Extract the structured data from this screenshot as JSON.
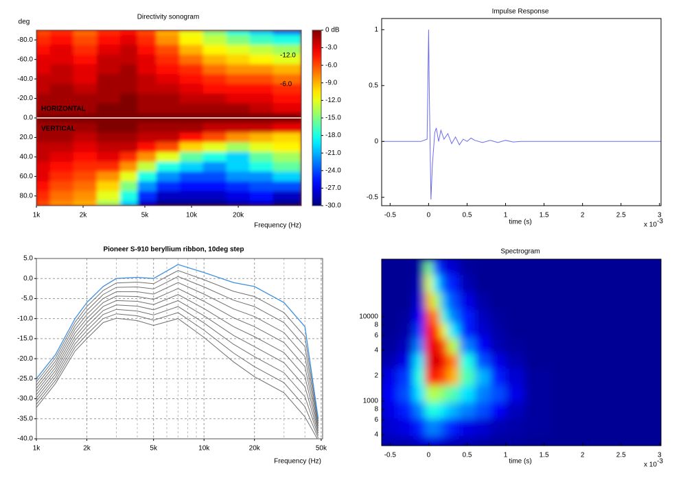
{
  "chart_data": [
    {
      "type": "heatmap",
      "title": "Directivity sonogram",
      "ylabel": "deg",
      "xlabel": "Frequency (Hz)",
      "xlog": true,
      "xlim": [
        1000,
        51000
      ],
      "ylim": [
        -90,
        90
      ],
      "xticks": [
        {
          "value": 1000,
          "label": "1k"
        },
        {
          "value": 2000,
          "label": "2k"
        },
        {
          "value": 5000,
          "label": "5k"
        },
        {
          "value": 10000,
          "label": "10k"
        },
        {
          "value": 20000,
          "label": "20k"
        }
      ],
      "yticks": [
        {
          "value": -80,
          "label": "-80.0"
        },
        {
          "value": -60,
          "label": "-60.0"
        },
        {
          "value": -40,
          "label": "-40.0"
        },
        {
          "value": -20,
          "label": "-20.0"
        },
        {
          "value": 0,
          "label": "0.0"
        },
        {
          "value": 20,
          "label": "20.0"
        },
        {
          "value": 40,
          "label": "40.0"
        },
        {
          "value": 60,
          "label": "60.0"
        },
        {
          "value": 80,
          "label": "80.0"
        }
      ],
      "zlim": [
        -30,
        0
      ],
      "zticks": [
        {
          "value": 0,
          "label": "0 dB"
        },
        {
          "value": -3,
          "label": "-3.0"
        },
        {
          "value": -6,
          "label": "-6.0"
        },
        {
          "value": -9,
          "label": "-9.0"
        },
        {
          "value": -12,
          "label": "-12.0"
        },
        {
          "value": -15,
          "label": "-15.0"
        },
        {
          "value": -18,
          "label": "-18.0"
        },
        {
          "value": -21,
          "label": "-21.0"
        },
        {
          "value": -24,
          "label": "-24.0"
        },
        {
          "value": -27,
          "label": "-27.0"
        },
        {
          "value": -30,
          "label": "-30.0"
        }
      ],
      "annotations": [
        "HORIZONTAL",
        "VERTICAL",
        "-12.0",
        "-6.0"
      ],
      "x": [
        1000,
        1500,
        2000,
        3000,
        4000,
        5000,
        7000,
        10000,
        14000,
        20000,
        28000,
        40000
      ],
      "y": [
        -90,
        -80,
        -70,
        -60,
        -50,
        -40,
        -30,
        -20,
        -10,
        0,
        10,
        20,
        30,
        40,
        50,
        60,
        70,
        80,
        90
      ],
      "z": [
        [
          -6,
          -5,
          -7,
          -5,
          -4,
          -6,
          -9,
          -12,
          -15,
          -18,
          -20,
          -22
        ],
        [
          -5,
          -4,
          -6,
          -4,
          -3,
          -5,
          -8,
          -11,
          -13,
          -15,
          -17,
          -18
        ],
        [
          -4,
          -3,
          -5,
          -3,
          -2,
          -4,
          -6,
          -9,
          -11,
          -12,
          -13,
          -14
        ],
        [
          -3,
          -3,
          -4,
          -2,
          -2,
          -3,
          -5,
          -7,
          -9,
          -10,
          -11,
          -12
        ],
        [
          -3,
          -2,
          -3,
          -2,
          -1,
          -3,
          -4,
          -5,
          -7,
          -8,
          -8,
          -9
        ],
        [
          -2,
          -2,
          -3,
          -1,
          -1,
          -2,
          -3,
          -4,
          -5,
          -6,
          -6,
          -7
        ],
        [
          -2,
          -1,
          -2,
          -1,
          -1,
          -2,
          -2,
          -3,
          -4,
          -4,
          -4,
          -5
        ],
        [
          -1,
          -1,
          -1,
          -1,
          0,
          -1,
          -1,
          -2,
          -2,
          -3,
          -3,
          -4
        ],
        [
          -1,
          -1,
          -1,
          0,
          0,
          -1,
          -1,
          -1,
          -1,
          -1,
          -2,
          -3
        ],
        [
          0,
          0,
          0,
          0,
          0,
          0,
          0,
          0,
          0,
          0,
          0,
          0
        ],
        [
          -1,
          -1,
          -1,
          0,
          0,
          -1,
          -1,
          -1,
          -2,
          -2,
          -2,
          -3
        ],
        [
          -1,
          -1,
          -2,
          -1,
          -1,
          -2,
          -2,
          -4,
          -6,
          -8,
          -9,
          -10
        ],
        [
          -2,
          -2,
          -3,
          -2,
          -2,
          -4,
          -6,
          -10,
          -12,
          -14,
          -12,
          -11
        ],
        [
          -2,
          -3,
          -4,
          -3,
          -5,
          -8,
          -12,
          -16,
          -18,
          -20,
          -16,
          -14
        ],
        [
          -3,
          -4,
          -5,
          -5,
          -8,
          -13,
          -18,
          -20,
          -22,
          -20,
          -18,
          -16
        ],
        [
          -3,
          -5,
          -6,
          -8,
          -12,
          -18,
          -22,
          -24,
          -24,
          -22,
          -22,
          -20
        ],
        [
          -4,
          -6,
          -7,
          -10,
          -15,
          -22,
          -25,
          -26,
          -26,
          -25,
          -24,
          -24
        ],
        [
          -5,
          -7,
          -8,
          -12,
          -18,
          -25,
          -28,
          -28,
          -28,
          -27,
          -26,
          -28
        ],
        [
          -6,
          -8,
          -9,
          -14,
          -20,
          -28,
          -30,
          -30,
          -30,
          -29,
          -28,
          -30
        ]
      ]
    },
    {
      "type": "line",
      "title": "Impulse Response",
      "xlabel": "time (s)",
      "x_scale": "x 10",
      "x_scale_exp": "-3",
      "xlim": [
        -0.61,
        3.02
      ],
      "ylim": [
        -0.575,
        1.1
      ],
      "xticks": [
        -0.5,
        0,
        0.5,
        1,
        1.5,
        2,
        2.5,
        3
      ],
      "yticks": [
        -0.5,
        0,
        0.5,
        1
      ],
      "x": [
        -0.6,
        -0.1,
        -0.02,
        0.0,
        0.01,
        0.03,
        0.05,
        0.08,
        0.1,
        0.13,
        0.16,
        0.2,
        0.25,
        0.3,
        0.35,
        0.4,
        0.45,
        0.5,
        0.55,
        0.6,
        0.7,
        0.8,
        0.9,
        1.0,
        1.1,
        1.2,
        1.5,
        2.0,
        2.5,
        3.02
      ],
      "series": [
        {
          "color": "#6a6af0",
          "values": [
            0,
            0,
            0.02,
            1.0,
            0.4,
            -0.52,
            -0.2,
            0.08,
            0.12,
            0.0,
            0.1,
            0.02,
            0.07,
            -0.02,
            0.04,
            -0.03,
            0.02,
            0.0,
            0.03,
            0.01,
            -0.01,
            0.01,
            -0.01,
            0.01,
            -0.005,
            0,
            0,
            0,
            0,
            0
          ]
        }
      ]
    },
    {
      "type": "line",
      "title": "Pioneer S-910 beryllium ribbon, 10deg step",
      "xlabel": "Frequency (Hz)",
      "xlog": true,
      "grid": true,
      "xlim": [
        1000,
        51000
      ],
      "ylim": [
        -40,
        5
      ],
      "xticks": [
        {
          "value": 1000,
          "label": "1k"
        },
        {
          "value": 2000,
          "label": "2k"
        },
        {
          "value": 5000,
          "label": "5k"
        },
        {
          "value": 10000,
          "label": "10k"
        },
        {
          "value": 20000,
          "label": "20k"
        },
        {
          "value": 50000,
          "label": "50k"
        }
      ],
      "xminorticks": [
        3000,
        4000,
        6000,
        7000,
        8000,
        9000,
        30000,
        40000
      ],
      "yticks": [
        {
          "value": -40,
          "label": "-40.0"
        },
        {
          "value": -35,
          "label": "-35.0"
        },
        {
          "value": -30,
          "label": "-30.0"
        },
        {
          "value": -25,
          "label": "-25.0"
        },
        {
          "value": -20,
          "label": "-20.0"
        },
        {
          "value": -15,
          "label": "-15.0"
        },
        {
          "value": -10,
          "label": "-10.0"
        },
        {
          "value": -5,
          "label": "-5.0"
        },
        {
          "value": 0,
          "label": "0.0"
        },
        {
          "value": 5,
          "label": "5.0"
        }
      ],
      "x": [
        1000,
        1300,
        1700,
        2000,
        2500,
        3000,
        4000,
        5000,
        7000,
        10000,
        15000,
        20000,
        30000,
        40000,
        48000
      ],
      "series": [
        {
          "color": "#707070",
          "values": [
            -32.2,
            -26.2,
            -18.1,
            -15,
            -11,
            -9.9,
            -10.5,
            -11.7,
            -10,
            -14.7,
            -20.8,
            -24.5,
            -28.5,
            -34.5,
            -40.4
          ]
        },
        {
          "color": "#707070",
          "values": [
            -31.4,
            -25.4,
            -17.2,
            -14,
            -10,
            -8.8,
            -9.3,
            -10.4,
            -8.5,
            -12.9,
            -18.6,
            -22,
            -26,
            -32,
            -39.8
          ]
        },
        {
          "color": "#707070",
          "values": [
            -30.6,
            -24.6,
            -16.3,
            -13,
            -9,
            -7.7,
            -8.1,
            -9.1,
            -7,
            -11.1,
            -16.4,
            -19.5,
            -23.5,
            -29.5,
            -39.2
          ]
        },
        {
          "color": "#707070",
          "values": [
            -29.8,
            -23.8,
            -15.4,
            -12,
            -8,
            -6.6,
            -6.9,
            -7.8,
            -5.5,
            -9.3,
            -14.2,
            -17,
            -21,
            -27,
            -38.6
          ]
        },
        {
          "color": "#707070",
          "values": [
            -29,
            -23,
            -14.5,
            -11,
            -7,
            -5.5,
            -5.7,
            -6.5,
            -4,
            -7.5,
            -12,
            -14.5,
            -18.5,
            -24.5,
            -38
          ]
        },
        {
          "color": "#707070",
          "values": [
            -28.2,
            -22.2,
            -13.6,
            -10,
            -6,
            -4.4,
            -4.5,
            -5.2,
            -2.5,
            -5.7,
            -9.8,
            -12,
            -16,
            -22,
            -37.4
          ]
        },
        {
          "color": "#707070",
          "values": [
            -27.4,
            -21.4,
            -12.7,
            -9,
            -5,
            -3.3,
            -3.3,
            -3.9,
            -1,
            -3.9,
            -7.6,
            -9.5,
            -13.5,
            -19.5,
            -36.8
          ]
        },
        {
          "color": "#707070",
          "values": [
            -26.6,
            -20.6,
            -11.8,
            -8,
            -4,
            -2.2,
            -2.1,
            -2.6,
            0.5,
            -2.1,
            -5.4,
            -7,
            -11,
            -17,
            -36.2
          ]
        },
        {
          "color": "#707070",
          "values": [
            -25.8,
            -19.8,
            -10.9,
            -7,
            -3,
            -1.1,
            -0.9,
            -1.3,
            2,
            -0.3,
            -3.2,
            -4.5,
            -8.5,
            -14.5,
            -35.6
          ]
        },
        {
          "color": "#3d8fe0",
          "values": [
            -25,
            -19,
            -10,
            -6,
            -2,
            0,
            0.3,
            0,
            3.5,
            1.5,
            -1,
            -2,
            -6,
            -12,
            -35
          ]
        }
      ]
    },
    {
      "type": "heatmap",
      "title": "Spectrogram",
      "xlabel": "time (s)",
      "x_scale": "x 10",
      "x_scale_exp": "-3",
      "ylog": true,
      "xlim": [
        -0.61,
        3.02
      ],
      "ylim": [
        296,
        48000
      ],
      "zlim": [
        0,
        100
      ],
      "xticks": [
        -0.5,
        0,
        0.5,
        1,
        1.5,
        2,
        2.5,
        3
      ],
      "yticks": [
        {
          "value": 400,
          "label": "4"
        },
        {
          "value": 600,
          "label": "6"
        },
        {
          "value": 800,
          "label": "8"
        },
        1000,
        {
          "value": 2000,
          "label": "2"
        },
        {
          "value": 4000,
          "label": "4"
        },
        {
          "value": 6000,
          "label": "6"
        },
        {
          "value": 8000,
          "label": "8"
        },
        10000
      ],
      "x": [
        -0.5,
        -0.3,
        -0.1,
        0,
        0.1,
        0.2,
        0.3,
        0.5,
        0.7,
        0.9,
        1.1,
        1.4,
        1.8,
        2.5
      ],
      "y": [
        300,
        500,
        800,
        1200,
        2000,
        3000,
        4500,
        7000,
        10000,
        15000,
        25000,
        40000
      ],
      "z": [
        [
          5,
          5,
          8,
          10,
          10,
          8,
          6,
          5,
          4,
          3,
          3,
          2,
          2,
          2
        ],
        [
          8,
          10,
          15,
          25,
          25,
          20,
          15,
          10,
          8,
          5,
          4,
          3,
          2,
          2
        ],
        [
          10,
          15,
          25,
          40,
          40,
          35,
          30,
          25,
          20,
          12,
          6,
          3,
          2,
          2
        ],
        [
          12,
          20,
          35,
          55,
          55,
          50,
          45,
          35,
          25,
          20,
          10,
          3,
          2,
          2
        ],
        [
          10,
          18,
          40,
          85,
          85,
          80,
          70,
          45,
          30,
          15,
          8,
          3,
          2,
          2
        ],
        [
          5,
          10,
          35,
          90,
          92,
          88,
          75,
          40,
          20,
          10,
          5,
          2,
          2,
          2
        ],
        [
          3,
          6,
          25,
          88,
          90,
          80,
          55,
          25,
          12,
          5,
          3,
          2,
          2,
          2
        ],
        [
          2,
          4,
          18,
          85,
          85,
          60,
          35,
          15,
          8,
          4,
          2,
          2,
          2,
          2
        ],
        [
          2,
          3,
          12,
          80,
          75,
          40,
          25,
          15,
          6,
          3,
          2,
          2,
          2,
          2
        ],
        [
          2,
          2,
          8,
          70,
          55,
          30,
          20,
          10,
          4,
          2,
          2,
          2,
          2,
          2
        ],
        [
          2,
          2,
          5,
          60,
          35,
          20,
          15,
          5,
          2,
          2,
          2,
          2,
          2,
          2
        ],
        [
          2,
          2,
          3,
          50,
          20,
          10,
          8,
          3,
          2,
          2,
          2,
          2,
          2,
          2
        ]
      ]
    }
  ]
}
